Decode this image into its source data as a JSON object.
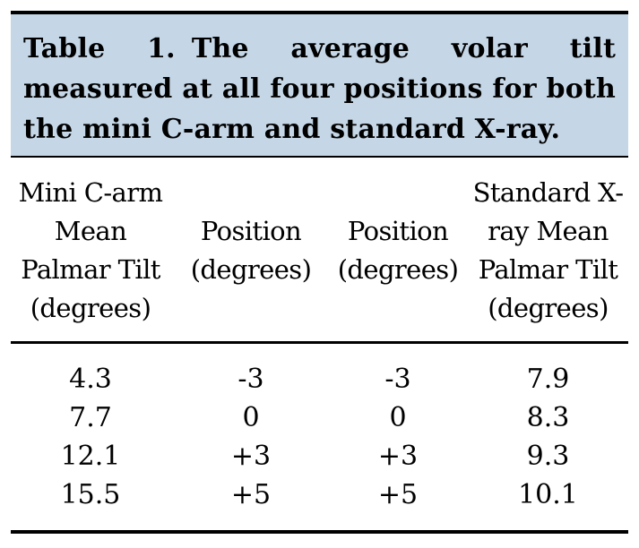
{
  "table": {
    "caption_label": "Table 1.",
    "caption_text": "The average volar tilt measured at all four positions for both the mini C-arm and standard X-ray.",
    "headers": [
      "Mini C-arm Mean Palmar Tilt (degrees)",
      "Position (degrees)",
      "Position (degrees)",
      "Standard X-ray Mean Palmar Tilt (degrees)"
    ],
    "rows": [
      [
        "4.3",
        "-3",
        "-3",
        "7.9"
      ],
      [
        "7.7",
        "0",
        "0",
        "8.3"
      ],
      [
        "12.1",
        "+3",
        "+3",
        "9.3"
      ],
      [
        "15.5",
        "+5",
        "+5",
        "10.1"
      ]
    ]
  }
}
